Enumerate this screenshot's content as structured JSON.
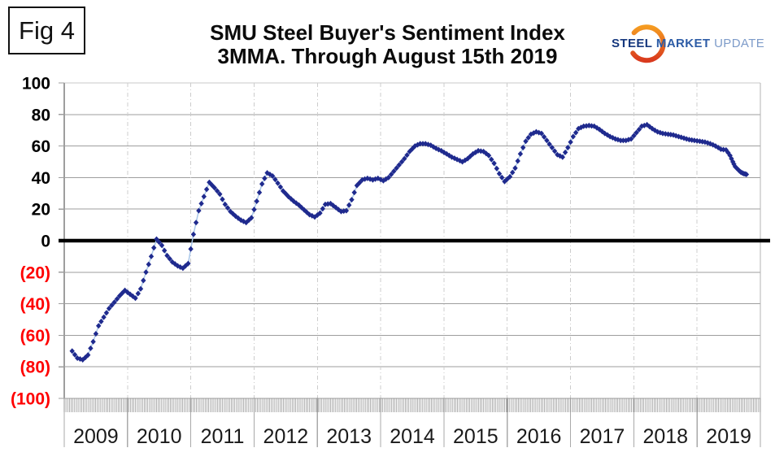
{
  "page": {
    "fig_label": "Fig 4"
  },
  "header": {
    "title_line1": "SMU Steel Buyer's Sentiment Index",
    "title_line2": "3MMA. Through August 15th 2019"
  },
  "logo": {
    "word1": "STEEL",
    "word2": "MARKET",
    "word3": "UPDATE",
    "swoosh_color_top": "#f59b20",
    "swoosh_color_bottom": "#d93a1e"
  },
  "chart_data": {
    "type": "scatter",
    "title": "SMU Steel Buyer's Sentiment Index",
    "subtitle": "3MMA. Through August 15th 2019",
    "series_name": "Steel Buyer's Sentiment Index (3-month moving average)",
    "xlabel": "",
    "ylabel": "",
    "xlim": [
      2009,
      2020
    ],
    "ylim": [
      -100,
      100
    ],
    "grid": true,
    "legend": "none",
    "marker": "diamond",
    "marker_color": "#1f2a8e",
    "line_color": "#a9c7e9",
    "zero_line_color": "#000000",
    "negative_label_color": "#ff0000",
    "x_ticks": [
      "2009",
      "2010",
      "2011",
      "2012",
      "2013",
      "2014",
      "2015",
      "2016",
      "2017",
      "2018",
      "2019"
    ],
    "y_ticks": [
      {
        "value": 100,
        "label": "100",
        "color": "#000000"
      },
      {
        "value": 80,
        "label": "80",
        "color": "#000000"
      },
      {
        "value": 60,
        "label": "60",
        "color": "#000000"
      },
      {
        "value": 40,
        "label": "40",
        "color": "#000000"
      },
      {
        "value": 20,
        "label": "20",
        "color": "#000000"
      },
      {
        "value": 0,
        "label": "0",
        "color": "#000000"
      },
      {
        "value": -20,
        "label": "(20)",
        "color": "#ff0000"
      },
      {
        "value": -40,
        "label": "(40)",
        "color": "#ff0000"
      },
      {
        "value": -60,
        "label": "(60)",
        "color": "#ff0000"
      },
      {
        "value": -80,
        "label": "(80)",
        "color": "#ff0000"
      },
      {
        "value": -100,
        "label": "(100)",
        "color": "#ff0000"
      }
    ],
    "points": [
      [
        2009.125,
        -70
      ],
      [
        2009.208,
        -74.5
      ],
      [
        2009.292,
        -75.5
      ],
      [
        2009.375,
        -72.5
      ],
      [
        2009.458,
        -64
      ],
      [
        2009.542,
        -54
      ],
      [
        2009.625,
        -48.5
      ],
      [
        2009.708,
        -43
      ],
      [
        2009.792,
        -39
      ],
      [
        2009.875,
        -35
      ],
      [
        2009.958,
        -31.5
      ],
      [
        2010.042,
        -34
      ],
      [
        2010.125,
        -36.5
      ],
      [
        2010.208,
        -30.5
      ],
      [
        2010.292,
        -20
      ],
      [
        2010.375,
        -10
      ],
      [
        2010.458,
        1
      ],
      [
        2010.542,
        -3
      ],
      [
        2010.625,
        -9.5
      ],
      [
        2010.708,
        -13.5
      ],
      [
        2010.792,
        -16
      ],
      [
        2010.875,
        -17.5
      ],
      [
        2010.958,
        -14.5
      ],
      [
        2011.042,
        4
      ],
      [
        2011.125,
        19
      ],
      [
        2011.208,
        28
      ],
      [
        2011.292,
        37
      ],
      [
        2011.375,
        33.5
      ],
      [
        2011.458,
        29.5
      ],
      [
        2011.542,
        23
      ],
      [
        2011.625,
        18.5
      ],
      [
        2011.708,
        15.5
      ],
      [
        2011.792,
        13
      ],
      [
        2011.875,
        11.5
      ],
      [
        2011.958,
        14.5
      ],
      [
        2012.042,
        25
      ],
      [
        2012.125,
        36
      ],
      [
        2012.208,
        43
      ],
      [
        2012.292,
        41
      ],
      [
        2012.375,
        36.5
      ],
      [
        2012.458,
        31.5
      ],
      [
        2012.542,
        28
      ],
      [
        2012.625,
        25
      ],
      [
        2012.708,
        22.5
      ],
      [
        2012.792,
        19.5
      ],
      [
        2012.875,
        16.5
      ],
      [
        2012.958,
        15
      ],
      [
        2013.042,
        17.5
      ],
      [
        2013.125,
        23
      ],
      [
        2013.208,
        23.5
      ],
      [
        2013.292,
        21
      ],
      [
        2013.375,
        18.5
      ],
      [
        2013.458,
        19
      ],
      [
        2013.542,
        26
      ],
      [
        2013.625,
        35
      ],
      [
        2013.708,
        38.5
      ],
      [
        2013.792,
        39.5
      ],
      [
        2013.875,
        38.5
      ],
      [
        2013.958,
        39.5
      ],
      [
        2014.042,
        38
      ],
      [
        2014.125,
        40
      ],
      [
        2014.208,
        44
      ],
      [
        2014.292,
        48
      ],
      [
        2014.375,
        52
      ],
      [
        2014.458,
        56.5
      ],
      [
        2014.542,
        60
      ],
      [
        2014.625,
        61.5
      ],
      [
        2014.708,
        61.5
      ],
      [
        2014.792,
        60.5
      ],
      [
        2014.875,
        58.5
      ],
      [
        2014.958,
        57
      ],
      [
        2015.042,
        55
      ],
      [
        2015.125,
        53
      ],
      [
        2015.208,
        51.5
      ],
      [
        2015.292,
        50
      ],
      [
        2015.375,
        52
      ],
      [
        2015.458,
        55
      ],
      [
        2015.542,
        57
      ],
      [
        2015.625,
        56.5
      ],
      [
        2015.708,
        54
      ],
      [
        2015.792,
        49
      ],
      [
        2015.875,
        42.5
      ],
      [
        2015.958,
        37.5
      ],
      [
        2016.042,
        40.5
      ],
      [
        2016.125,
        46
      ],
      [
        2016.208,
        55
      ],
      [
        2016.292,
        63
      ],
      [
        2016.375,
        67.5
      ],
      [
        2016.458,
        69
      ],
      [
        2016.542,
        68
      ],
      [
        2016.625,
        63.5
      ],
      [
        2016.708,
        59
      ],
      [
        2016.792,
        54.5
      ],
      [
        2016.875,
        53
      ],
      [
        2016.958,
        59
      ],
      [
        2017.042,
        66
      ],
      [
        2017.125,
        71
      ],
      [
        2017.208,
        72.5
      ],
      [
        2017.292,
        73
      ],
      [
        2017.375,
        72.5
      ],
      [
        2017.458,
        70.5
      ],
      [
        2017.542,
        68
      ],
      [
        2017.625,
        66
      ],
      [
        2017.708,
        64.5
      ],
      [
        2017.792,
        63.5
      ],
      [
        2017.875,
        63.5
      ],
      [
        2017.958,
        64.5
      ],
      [
        2018.042,
        68.5
      ],
      [
        2018.125,
        72.5
      ],
      [
        2018.208,
        73.5
      ],
      [
        2018.292,
        71
      ],
      [
        2018.375,
        69
      ],
      [
        2018.458,
        68
      ],
      [
        2018.542,
        67.5
      ],
      [
        2018.625,
        67
      ],
      [
        2018.708,
        66
      ],
      [
        2018.792,
        65
      ],
      [
        2018.875,
        64
      ],
      [
        2018.958,
        63.5
      ],
      [
        2019.042,
        63
      ],
      [
        2019.125,
        62.5
      ],
      [
        2019.208,
        61.5
      ],
      [
        2019.292,
        60
      ],
      [
        2019.375,
        58
      ],
      [
        2019.458,
        57.5
      ],
      [
        2019.52,
        54
      ],
      [
        2019.565,
        50
      ],
      [
        2019.6,
        47
      ],
      [
        2019.65,
        45
      ],
      [
        2019.69,
        43.5
      ],
      [
        2019.74,
        42.5
      ],
      [
        2019.78,
        42
      ]
    ]
  }
}
